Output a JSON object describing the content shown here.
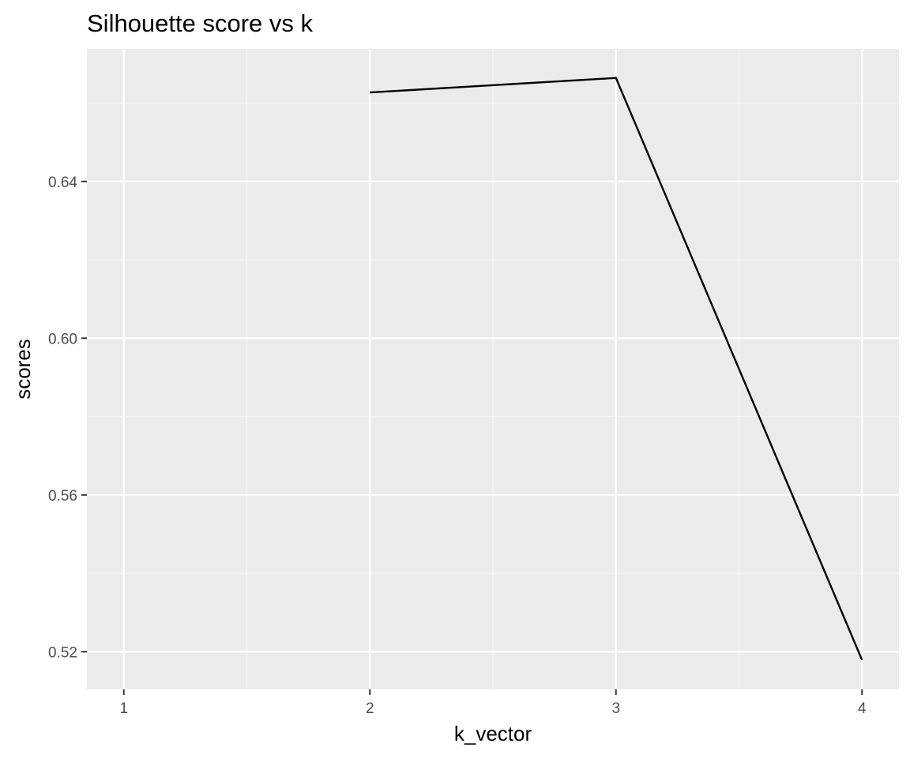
{
  "chart_data": {
    "type": "line",
    "title": "Silhouette score vs k",
    "xlabel": "k_vector",
    "ylabel": "scores",
    "x": [
      2,
      3,
      4
    ],
    "y": [
      0.6627,
      0.6664,
      0.5179
    ],
    "x_ticks": [
      1,
      2,
      3,
      4
    ],
    "x_tick_labels": [
      "1",
      "2",
      "3",
      "4"
    ],
    "y_ticks": [
      0.52,
      0.56,
      0.6,
      0.64
    ],
    "y_tick_labels": [
      "0.52",
      "0.56",
      "0.60",
      "0.64"
    ],
    "xlim": [
      0.85,
      4.15
    ],
    "ylim": [
      0.5104,
      0.6738
    ],
    "grid": true,
    "legend": "none",
    "colors": {
      "panel_background": "#ebebeb",
      "grid_major": "#ffffff",
      "grid_minor": "#f5f5f5",
      "line": "#000000",
      "tick_text": "#4d4d4d",
      "tick_mark": "#333333"
    }
  }
}
